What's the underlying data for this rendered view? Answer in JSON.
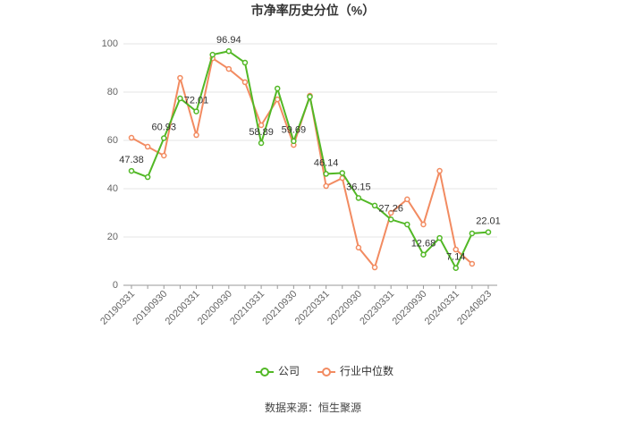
{
  "chart_data": {
    "type": "line",
    "title": "市净率历史分位（%）",
    "source": "数据来源：恒生聚源",
    "categories": [
      "20190331",
      null,
      "20190930",
      null,
      "20200331",
      null,
      "20200930",
      null,
      "20210331",
      null,
      "20210930",
      null,
      "20220331",
      null,
      "20220930",
      null,
      "20230331",
      null,
      "20230930",
      null,
      "20240331",
      null,
      "20240823"
    ],
    "series": [
      {
        "name": "公司",
        "color": "#52b826",
        "values": [
          47.38,
          44.8,
          60.93,
          77.4,
          72.01,
          95.5,
          96.94,
          92.2,
          58.89,
          81.5,
          59.69,
          78.1,
          46.14,
          46.5,
          36.15,
          33,
          27.26,
          25.2,
          12.68,
          19.6,
          7.14,
          21.5,
          22.01
        ],
        "value_labels": [
          "47.38",
          null,
          "60.93",
          null,
          "72.01",
          null,
          "96.94",
          null,
          "58.89",
          null,
          "59.69",
          null,
          "46.14",
          null,
          "36.15",
          null,
          "27.26",
          null,
          "12.68",
          null,
          "7.14",
          null,
          "22.01"
        ]
      },
      {
        "name": "行业中位数",
        "color": "#f28b61",
        "values": [
          61.1,
          57.4,
          53.7,
          85.9,
          62.2,
          94,
          89.6,
          84.1,
          66.3,
          77,
          58.1,
          78.5,
          41.1,
          44.4,
          15.6,
          7.4,
          30,
          35.6,
          25.2,
          47.4,
          14.8,
          8.9,
          null
        ]
      }
    ],
    "ylim": [
      0,
      100
    ],
    "yticks": [
      0,
      20,
      40,
      60,
      80,
      100
    ],
    "grid": true
  }
}
